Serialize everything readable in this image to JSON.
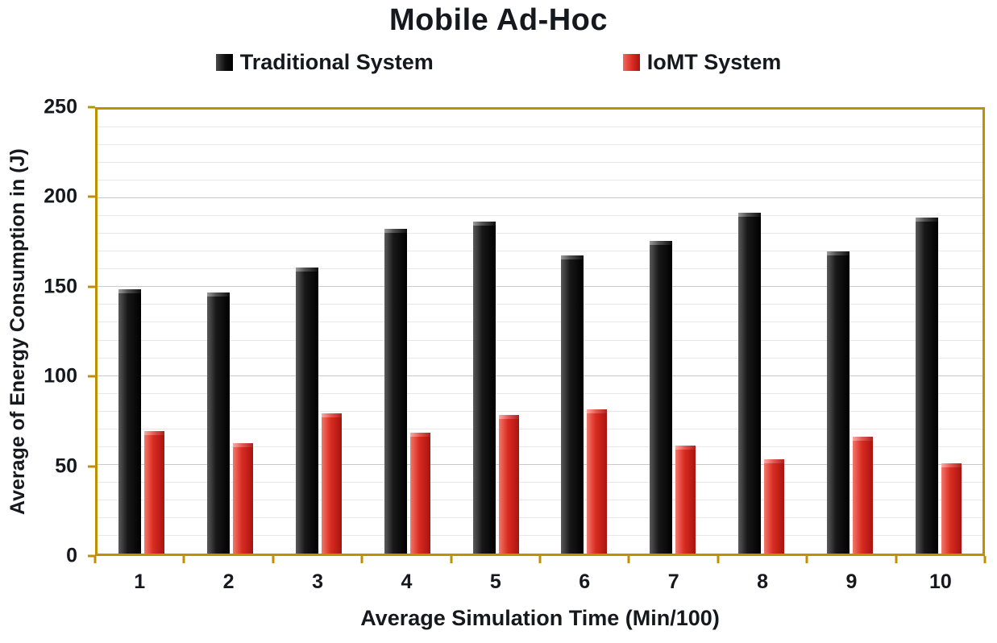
{
  "chart_data": {
    "type": "bar",
    "title": "Mobile Ad-Hoc",
    "xlabel": "Average Simulation Time (Min/100)",
    "ylabel": "Average of Energy Consumption in (J)",
    "categories": [
      "1",
      "2",
      "3",
      "4",
      "5",
      "6",
      "7",
      "8",
      "9",
      "10"
    ],
    "ylim": [
      0,
      250
    ],
    "yticks": [
      0,
      50,
      100,
      150,
      200,
      250
    ],
    "grid_minor_step": 10,
    "grid_major_step": 50,
    "grid": "horizontal",
    "legend_position": "top",
    "series": [
      {
        "name": "Traditional System",
        "color": "#0d0d0d",
        "values": [
          149,
          147,
          161,
          183,
          187,
          168,
          176,
          192,
          170,
          189
        ]
      },
      {
        "name": "IoMT System",
        "color": "#d92b21",
        "values": [
          69,
          62,
          79,
          68,
          78,
          81,
          61,
          53,
          66,
          51
        ]
      }
    ]
  },
  "colors": {
    "axis_frame": "#bf9000",
    "grid_minor": "#e8e8e8",
    "grid_major": "#c9c9c9",
    "title_text": "#15181d",
    "bar_traditional": "#0d0d0d",
    "bar_iomt": "#d92b21"
  }
}
